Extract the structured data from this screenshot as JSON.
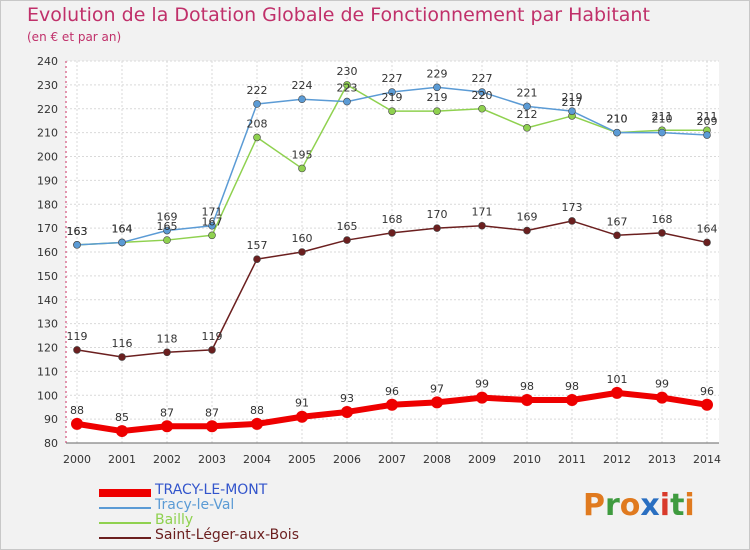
{
  "title": "Evolution de la Dotation Globale de Fonctionnement par Habitant",
  "subtitle": "(en € et par an)",
  "logo": {
    "text": "Proxiti",
    "letters": [
      "P",
      "r",
      "o",
      "x",
      "i",
      "t",
      "i"
    ],
    "colors": [
      "#e07a1f",
      "#3f9b3f",
      "#e07a1f",
      "#2a6fc1",
      "#d93a2b",
      "#3f9b3f",
      "#e07a1f"
    ]
  },
  "chart_data": {
    "type": "line",
    "x": [
      2000,
      2001,
      2002,
      2003,
      2004,
      2005,
      2006,
      2007,
      2008,
      2009,
      2010,
      2011,
      2012,
      2013,
      2014
    ],
    "ylim": [
      80,
      240
    ],
    "yticks": [
      80,
      90,
      100,
      110,
      120,
      130,
      140,
      150,
      160,
      170,
      180,
      190,
      200,
      210,
      220,
      230,
      240
    ],
    "grid": true,
    "legend_position": "bottom-left",
    "series": [
      {
        "name": "TRACY-LE-MONT",
        "color": "#ee0000",
        "values": [
          88,
          85,
          87,
          87,
          88,
          91,
          93,
          96,
          97,
          99,
          98,
          98,
          101,
          99,
          96
        ]
      },
      {
        "name": "Tracy-le-Val",
        "color": "#5b9bd5",
        "values": [
          163,
          164,
          169,
          171,
          222,
          224,
          223,
          227,
          229,
          227,
          221,
          219,
          210,
          210,
          209
        ]
      },
      {
        "name": "Bailly",
        "color": "#8fd14f",
        "values": [
          163,
          164,
          165,
          167,
          208,
          195,
          230,
          219,
          219,
          220,
          212,
          217,
          210,
          211,
          211
        ]
      },
      {
        "name": "Saint-Léger-aux-Bois",
        "color": "#6b1f1f",
        "values": [
          119,
          116,
          118,
          119,
          157,
          160,
          165,
          168,
          170,
          171,
          169,
          173,
          167,
          168,
          164
        ]
      }
    ]
  }
}
